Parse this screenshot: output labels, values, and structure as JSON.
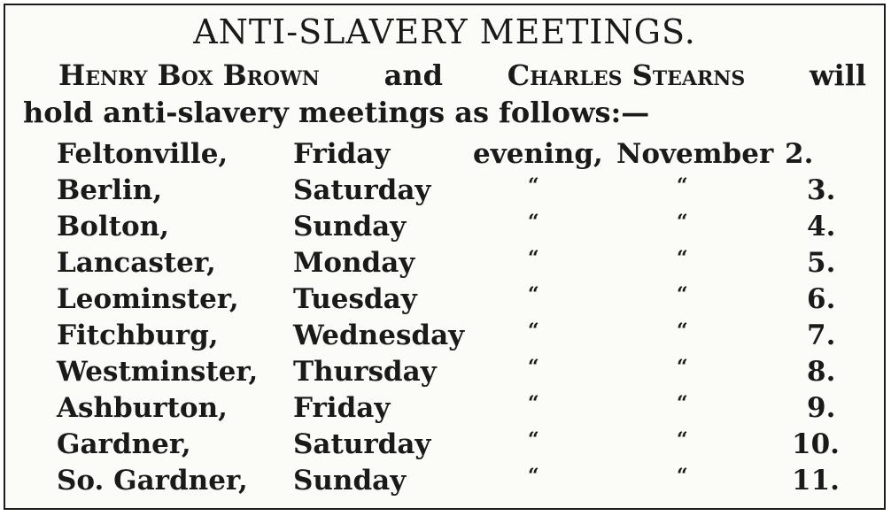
{
  "notice": {
    "title": "ANTI-SLAVERY MEETINGS.",
    "intro": {
      "speaker1": "Henry Box Brown",
      "conj": "and",
      "speaker2": "Charles Stearns",
      "will": "will",
      "line2": "hold anti-slavery meetings as follows:—"
    },
    "meetings": [
      {
        "town": "Feltonville,",
        "day": "Friday",
        "time_of_day": "evening,",
        "month": "November",
        "date": "2."
      },
      {
        "town": "Berlin,",
        "day": "Saturday",
        "time_of_day": "“",
        "month": "“",
        "date": "3."
      },
      {
        "town": "Bolton,",
        "day": "Sunday",
        "time_of_day": "“",
        "month": "“",
        "date": "4."
      },
      {
        "town": "Lancaster,",
        "day": "Monday",
        "time_of_day": "“",
        "month": "“",
        "date": "5."
      },
      {
        "town": "Leominster,",
        "day": "Tuesday",
        "time_of_day": "“",
        "month": "“",
        "date": "6."
      },
      {
        "town": "Fitchburg,",
        "day": "Wednesday",
        "time_of_day": "“",
        "month": "“",
        "date": "7."
      },
      {
        "town": "Westminster,",
        "day": "Thursday",
        "time_of_day": "“",
        "month": "“",
        "date": "8."
      },
      {
        "town": "Ashburton,",
        "day": "Friday",
        "time_of_day": "“",
        "month": "“",
        "date": "9."
      },
      {
        "town": "Gardner,",
        "day": "Saturday",
        "time_of_day": "“",
        "month": "“",
        "date": "10."
      },
      {
        "town": "So. Gardner,",
        "day": "Sunday",
        "time_of_day": "“",
        "month": "“",
        "date": "11."
      }
    ]
  }
}
